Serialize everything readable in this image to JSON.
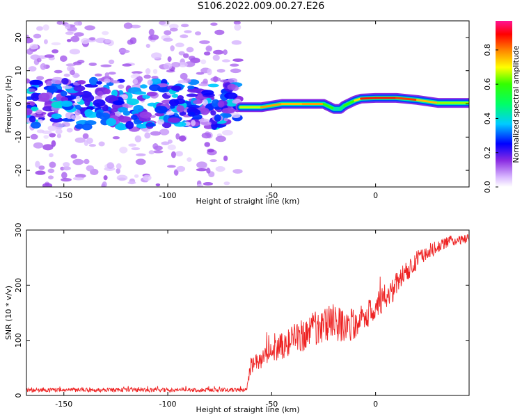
{
  "title": "S106.2022.009.00.27.E26",
  "colors": {
    "snr_line": "#ee2222",
    "axes": "#000000"
  },
  "chart_data": [
    {
      "type": "heatmap",
      "xlabel": "Height of straight line (km)",
      "ylabel": "Frequency (Hz)",
      "xlim": [
        -168,
        45
      ],
      "ylim": [
        -25,
        25
      ],
      "x_ticks": [
        -150,
        -100,
        -50,
        0
      ],
      "y_ticks": [
        -20,
        -10,
        0,
        10,
        20
      ],
      "colorbar": {
        "label": "Normalized spectral amplitude",
        "range": [
          0.0,
          0.97
        ],
        "ticks": [
          0.0,
          0.2,
          0.4,
          0.6,
          0.8
        ],
        "colormap": "rainbow"
      },
      "frequency_track": {
        "x": [
          -65,
          -55,
          -45,
          -35,
          -25,
          -20,
          -17,
          -15,
          -10,
          -7,
          0,
          10,
          20,
          30,
          45
        ],
        "y": [
          -1,
          -1,
          0,
          0,
          0,
          -1.5,
          -1.5,
          -0.5,
          1,
          1.6,
          1.8,
          1.8,
          1.2,
          0.3,
          0.3
        ],
        "amplitude": [
          0.5,
          0.85,
          0.7,
          0.8,
          0.75,
          0.45,
          0.4,
          0.55,
          0.65,
          0.8,
          0.95,
          0.8,
          0.9,
          0.6,
          0.7
        ]
      },
      "noise_region": {
        "x_range": [
          -168,
          -66
        ],
        "band_center": 0,
        "band_halfwidth": 5,
        "typical_amplitude": 0.25,
        "max_amplitude": 0.4
      }
    },
    {
      "type": "line",
      "xlabel": "Height of straight line (km)",
      "ylabel": "SNR (10 * v/v)",
      "xlim": [
        -168,
        45
      ],
      "ylim": [
        0,
        300
      ],
      "x_ticks": [
        -150,
        -100,
        -50,
        0
      ],
      "y_ticks": [
        0,
        100,
        200,
        300
      ],
      "series": [
        {
          "x": [
            -168,
            -62,
            -60,
            -55,
            -50,
            -45,
            -40,
            -35,
            -30,
            -25,
            -20,
            -15,
            -10,
            -5,
            0,
            5,
            10,
            15,
            20,
            25,
            30,
            35,
            40,
            45
          ],
          "y": [
            10,
            10,
            55,
            65,
            80,
            90,
            100,
            110,
            120,
            130,
            135,
            125,
            130,
            145,
            160,
            180,
            200,
            225,
            245,
            260,
            270,
            280,
            282,
            285
          ],
          "noise_amplitude": [
            4,
            4,
            15,
            18,
            22,
            25,
            28,
            30,
            32,
            33,
            34,
            30,
            28,
            26,
            25,
            24,
            23,
            20,
            18,
            14,
            12,
            10,
            8,
            8
          ]
        }
      ]
    }
  ]
}
